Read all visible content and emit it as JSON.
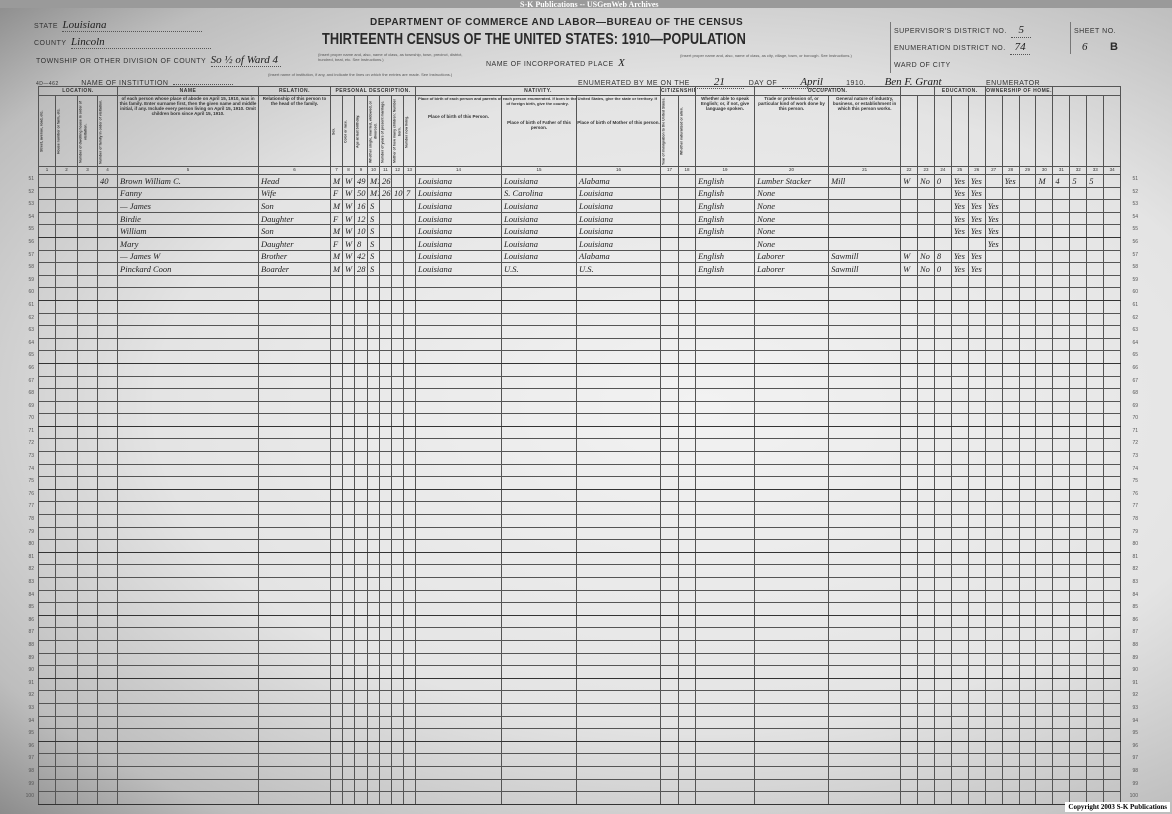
{
  "watermark": "S-K Publications -- USGenWeb Archives",
  "header": {
    "state_label": "State",
    "state_value": "Louisiana",
    "county_label": "County",
    "county_value": "Lincoln",
    "township_label": "Township or other division of county",
    "township_value": "So ½ of Ward 4",
    "township_note": "(Insert proper name and, also, name of class, as township, town, precinct, district, hundred, beat, etc.   See Instructions.)",
    "institution_label": "Name of Institution",
    "institution_value": "",
    "institution_note": "(Insert name of institution, if any, and indicate the lines on which the entries are made.   See Instructions.)",
    "department": "DEPARTMENT OF COMMERCE AND LABOR—BUREAU OF THE CENSUS",
    "title": "THIRTEENTH CENSUS OF THE UNITED STATES: 1910—POPULATION",
    "incorporated_label": "Name of incorporated place",
    "incorporated_value": "X",
    "incorporated_note": "(Insert proper name and, also, name of class, as city, village, town, or borough.   See Instructions.)",
    "enumerated_label": "Enumerated by me on the",
    "enumerated_day": "21",
    "day_of_label": "day of",
    "enumerated_month": "April",
    "year": "1910.",
    "supervisor_label": "Supervisor's District No.",
    "supervisor_value": "5",
    "ed_label": "Enumeration District No.",
    "ed_value": "74",
    "ward_label": "Ward of City",
    "ward_value": "",
    "sheet_label": "Sheet No.",
    "sheet_value": "6",
    "sheet_side": "B",
    "enumerator_signature": "Ben F. Grant",
    "enumerator_label": "Enumerator",
    "form_no": "4D—462"
  },
  "groups": [
    "LOCATION.",
    "NAME",
    "RELATION.",
    "PERSONAL DESCRIPTION.",
    "NATIVITY.",
    "CITIZENSHIP.",
    "",
    "OCCUPATION.",
    "",
    "EDUCATION.",
    "OWNERSHIP OF HOME.",
    ""
  ],
  "subheads": {
    "c1": "Street, avenue, road, etc.",
    "c2": "House number or farm, etc.",
    "c3": "Number of dwelling house in order of visitation.",
    "c4": "Number of family in order of visitation.",
    "c5": "of each person whose place of abode on April 15, 1910, was in this family. Enter surname first, then the given name and middle initial, if any. Include every person living on April 15, 1910. Omit children born since April 15, 1910.",
    "c6": "Relationship of this person to the head of the family.",
    "c7": "Sex.",
    "c8": "Color or race.",
    "c9": "Age at last birthday.",
    "c10": "Whether single, married, widowed, or divorced.",
    "c11": "Number of years of present marriage.",
    "c12": "Mother of how many children: Number born.",
    "c13": "Number now living.",
    "nativity_note": "Place of birth of each person and parents of each person enumerated. If born in the United States, give the state or territory. If of foreign birth, give the country.",
    "c14": "Place of birth of this Person.",
    "c15": "Place of birth of Father of this person.",
    "c16": "Place of birth of Mother of this person.",
    "c17": "Year of immigration to the United States.",
    "c18": "Whether naturalized or alien.",
    "c19": "Whether able to speak English; or, if not, give language spoken.",
    "c20": "Trade or profession of, or particular kind of work done by this person.",
    "c21": "General nature of industry, business, or establishment in which this person works."
  },
  "rows": [
    {
      "line": "51",
      "c4": "40",
      "c5": "Brown William C.",
      "c6": "Head",
      "c7": "M",
      "c8": "W",
      "c9": "49",
      "c10": "M1",
      "c11": "26",
      "c14": "Louisiana",
      "c15": "Louisiana",
      "c16": "Alabama",
      "c19": "English",
      "c20": "Lumber Stacker",
      "c21": "Mill",
      "c22": "W",
      "c23": "No",
      "c24": "0",
      "c25": "Yes",
      "c26": "Yes",
      "c28": "Yes",
      "c30": "M",
      "c31": "4",
      "c32": "5",
      "c33": "5"
    },
    {
      "line": "52",
      "c5": "Fanny",
      "c6": "Wife",
      "c7": "F",
      "c8": "W",
      "c9": "50",
      "c10": "M1",
      "c11": "26",
      "c12": "10",
      "c13": "7",
      "c14": "Louisiana",
      "c15": "S. Carolina",
      "c16": "Louisiana",
      "c19": "English",
      "c20": "None",
      "c25": "Yes",
      "c26": "Yes"
    },
    {
      "line": "53",
      "c5": "— James",
      "c6": "Son",
      "c7": "M",
      "c8": "W",
      "c9": "16",
      "c10": "S",
      "c14": "Louisiana",
      "c15": "Louisiana",
      "c16": "Louisiana",
      "c19": "English",
      "c20": "None",
      "c25": "Yes",
      "c26": "Yes",
      "c27": "Yes"
    },
    {
      "line": "54",
      "c5": "Birdie",
      "c6": "Daughter",
      "c7": "F",
      "c8": "W",
      "c9": "12",
      "c10": "S",
      "c14": "Louisiana",
      "c15": "Louisiana",
      "c16": "Louisiana",
      "c19": "English",
      "c20": "None",
      "c25": "Yes",
      "c26": "Yes",
      "c27": "Yes"
    },
    {
      "line": "55",
      "c5": "William",
      "c6": "Son",
      "c7": "M",
      "c8": "W",
      "c9": "10",
      "c10": "S",
      "c14": "Louisiana",
      "c15": "Louisiana",
      "c16": "Louisiana",
      "c19": "English",
      "c20": "None",
      "c25": "Yes",
      "c26": "Yes",
      "c27": "Yes"
    },
    {
      "line": "56",
      "c5": "Mary",
      "c6": "Daughter",
      "c7": "F",
      "c8": "W",
      "c9": "8",
      "c10": "S",
      "c14": "Louisiana",
      "c15": "Louisiana",
      "c16": "Louisiana",
      "c20": "None",
      "c27": "Yes"
    },
    {
      "line": "57",
      "c5": "— James W",
      "c6": "Brother",
      "c7": "M",
      "c8": "W",
      "c9": "42",
      "c10": "S",
      "c14": "Louisiana",
      "c15": "Louisiana",
      "c16": "Alabama",
      "c19": "English",
      "c20": "Laborer",
      "c21": "Sawmill",
      "c22": "W",
      "c23": "No",
      "c24": "8",
      "c25": "Yes",
      "c26": "Yes"
    },
    {
      "line": "58",
      "c5": "Pinckard Coon",
      "c6": "Boarder",
      "c7": "M",
      "c8": "W",
      "c9": "28",
      "c10": "S",
      "c14": "Louisiana",
      "c15": "U.S.",
      "c16": "U.S.",
      "c19": "English",
      "c20": "Laborer",
      "c21": "Sawmill",
      "c22": "W",
      "c23": "No",
      "c24": "0",
      "c25": "Yes",
      "c26": "Yes"
    }
  ],
  "first_line": 51,
  "last_line": 100,
  "column_numbers": [
    "1",
    "2",
    "3",
    "4",
    "5",
    "6",
    "7",
    "8",
    "9",
    "10",
    "11",
    "12",
    "13",
    "14",
    "15",
    "16",
    "17",
    "18",
    "19",
    "20",
    "21",
    "22",
    "23",
    "24",
    "25",
    "26",
    "27",
    "28",
    "29",
    "30",
    "31",
    "32",
    "33",
    "34"
  ],
  "copyright": "Copyright 2003 S-K Publications"
}
